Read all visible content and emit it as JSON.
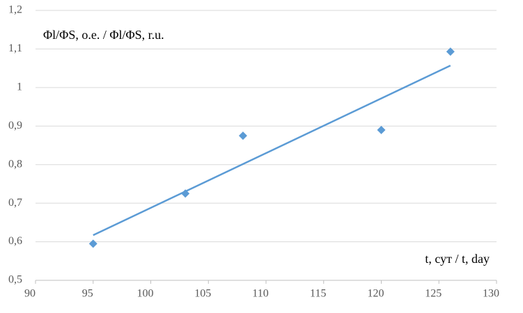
{
  "chart_data": {
    "type": "scatter",
    "y_label": "Φl/ΦS, о.е. / Φl/ΦS, r.u.",
    "x_label": "t, сут / t, day",
    "x": [
      95,
      103,
      108,
      120,
      126
    ],
    "values": [
      0.595,
      0.725,
      0.875,
      0.89,
      1.093
    ],
    "color": "#5b9bd5",
    "trendline": {
      "x": [
        95,
        126
      ],
      "values": [
        0.617,
        1.057
      ]
    },
    "xlim": [
      90,
      130
    ],
    "xticks": [
      90,
      95,
      100,
      105,
      110,
      115,
      120,
      125,
      130
    ],
    "ylim": [
      0.5,
      1.2
    ],
    "yticks": [
      {
        "value": 0.5,
        "label": "0,5"
      },
      {
        "value": 0.6,
        "label": "0,6"
      },
      {
        "value": 0.7,
        "label": "0,7"
      },
      {
        "value": 0.8,
        "label": "0,8"
      },
      {
        "value": 0.9,
        "label": "0,9"
      },
      1,
      {
        "value": 1.1,
        "label": "1,1"
      },
      {
        "value": 1.2,
        "label": "1,2"
      }
    ],
    "grid": true
  }
}
